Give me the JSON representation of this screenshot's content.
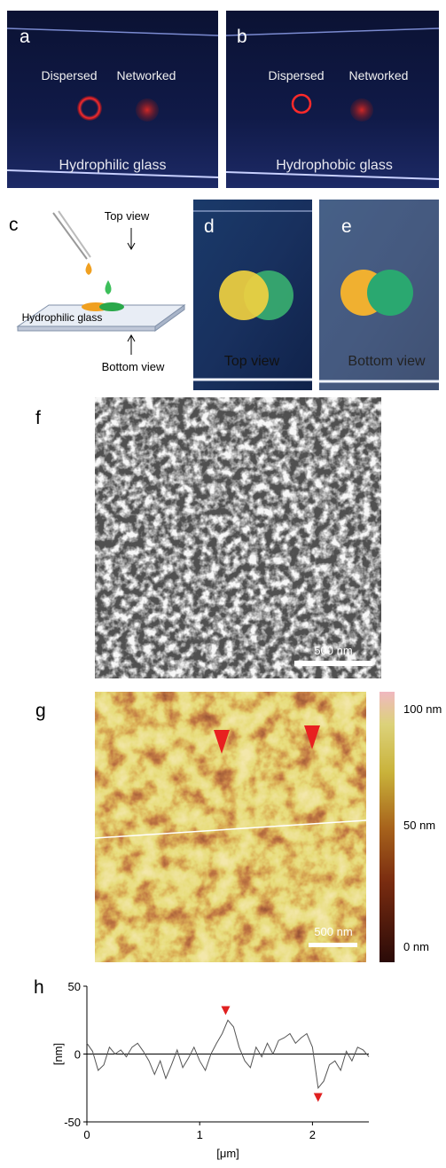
{
  "panels": {
    "a": {
      "label": "a",
      "dispersed": "Dispersed",
      "networked": "Networked",
      "caption": "Hydrophilic glass"
    },
    "b": {
      "label": "b",
      "dispersed": "Dispersed",
      "networked": "Networked",
      "caption": "Hydrophobic glass"
    },
    "c": {
      "label": "c",
      "top": "Top view",
      "glass": "Hydrophilic glass",
      "bottom": "Bottom view"
    },
    "d": {
      "label": "d",
      "caption": "Top view"
    },
    "e": {
      "label": "e",
      "caption": "Bottom view"
    },
    "f": {
      "label": "f",
      "scale_bar": "500 nm"
    },
    "g": {
      "label": "g",
      "scale_bar": "500 nm",
      "colorbar": [
        "100 nm",
        "50 nm",
        "0 nm"
      ]
    }
  },
  "chart_data": {
    "type": "line",
    "label": "h",
    "x_label": "[μm]",
    "y_label": "[nm]",
    "x": [
      0,
      0.05,
      0.1,
      0.15,
      0.2,
      0.25,
      0.3,
      0.35,
      0.4,
      0.45,
      0.5,
      0.55,
      0.6,
      0.65,
      0.7,
      0.75,
      0.8,
      0.85,
      0.9,
      0.95,
      1,
      1.05,
      1.1,
      1.15,
      1.2,
      1.25,
      1.3,
      1.35,
      1.4,
      1.45,
      1.5,
      1.55,
      1.6,
      1.65,
      1.7,
      1.75,
      1.8,
      1.85,
      1.9,
      1.95,
      2,
      2.05,
      2.1,
      2.15,
      2.2,
      2.25,
      2.3,
      2.35,
      2.4,
      2.45,
      2.5
    ],
    "series": [
      {
        "color": "#555555",
        "values": [
          8,
          2,
          -12,
          -8,
          5,
          0,
          3,
          -2,
          5,
          8,
          2,
          -5,
          -15,
          -5,
          -18,
          -8,
          3,
          -10,
          -3,
          5,
          -5,
          -12,
          0,
          8,
          15,
          25,
          20,
          5,
          -5,
          -10,
          5,
          -2,
          8,
          0,
          10,
          12,
          15,
          8,
          12,
          15,
          5,
          -25,
          -20,
          -8,
          -5,
          -12,
          2,
          -5,
          5,
          3,
          -2
        ]
      }
    ],
    "xlim": [
      0,
      2.5
    ],
    "ylim": [
      -50,
      50
    ],
    "xticks": [
      0,
      1,
      2
    ],
    "yticks": [
      -50,
      0,
      50
    ],
    "zero_line": true,
    "markers": {
      "color": "#e02020",
      "x": [
        1.23,
        2.05
      ],
      "y": [
        32,
        -32
      ]
    }
  }
}
